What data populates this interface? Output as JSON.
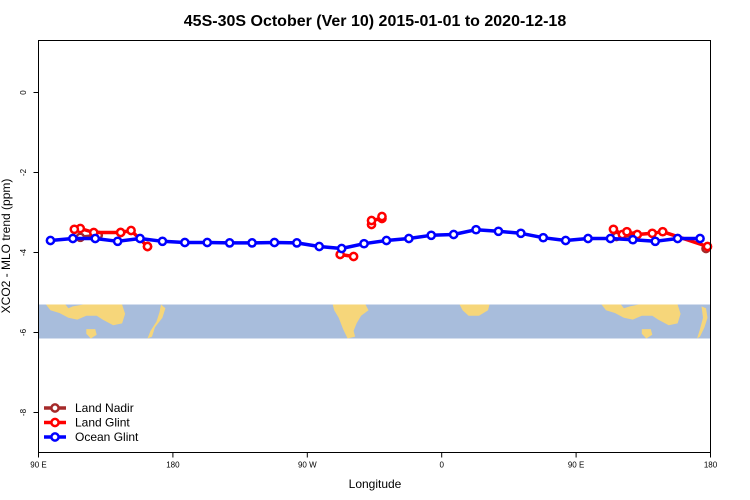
{
  "chart_data": {
    "type": "line",
    "title": "45S-30S October (Ver 10)   2015-01-01 to 2020-12-18",
    "xlabel": "Longitude",
    "ylabel": "XCO2 - MLO trend (ppm)",
    "xlim": [
      90,
      540
    ],
    "ylim": [
      -9.0,
      1.3
    ],
    "x_ticks": [
      {
        "value": 90,
        "label": "90 E"
      },
      {
        "value": 180,
        "label": "180"
      },
      {
        "value": 270,
        "label": "90 W"
      },
      {
        "value": 360,
        "label": "0"
      },
      {
        "value": 450,
        "label": "90 E"
      },
      {
        "value": 540,
        "label": "180"
      }
    ],
    "y_ticks": [
      {
        "value": 0,
        "label": "0"
      },
      {
        "value": -2,
        "label": "-2"
      },
      {
        "value": -4,
        "label": "-4"
      },
      {
        "value": -6,
        "label": "-6"
      },
      {
        "value": -8,
        "label": "-8"
      }
    ],
    "legend_position": "bottom-left",
    "grid": false,
    "background_map": {
      "lat_range": "45S-30S",
      "y_range": [
        -6.15,
        -5.3
      ],
      "ocean_color": "#a8bddc",
      "land_color": "#f6d67a"
    },
    "series": [
      {
        "name": "Land Nadir",
        "color": "#a52a2a",
        "segments": [
          [
            [
              118,
              -3.62
            ],
            [
              130,
              -3.57
            ]
          ],
          [
            [
              477,
              -3.6
            ],
            [
              490,
              -3.57
            ]
          ],
          [
            [
              537,
              -3.9
            ]
          ]
        ]
      },
      {
        "name": "Land Glint",
        "color": "#ff0000",
        "segments": [
          [
            [
              118,
              -3.4
            ],
            [
              127,
              -3.5
            ],
            [
              145,
              -3.5
            ],
            [
              152,
              -3.45
            ],
            [
              163,
              -3.85
            ]
          ],
          [
            [
              114,
              -3.42
            ]
          ],
          [
            [
              145,
              -3.5
            ]
          ],
          [
            [
              163,
              -3.85
            ]
          ],
          [
            [
              292,
              -4.05
            ],
            [
              301,
              -4.1
            ]
          ],
          [
            [
              313,
              -3.3
            ],
            [
              313,
              -3.2
            ],
            [
              320,
              -3.15
            ],
            [
              320,
              -3.1
            ]
          ],
          [
            [
              475,
              -3.42
            ],
            [
              481,
              -3.55
            ],
            [
              484,
              -3.48
            ],
            [
              491,
              -3.55
            ],
            [
              501,
              -3.52
            ],
            [
              508,
              -3.48
            ],
            [
              538,
              -3.85
            ]
          ]
        ]
      },
      {
        "name": "Ocean Glint",
        "color": "#0000ff",
        "values": [
          [
            98,
            -3.7
          ],
          [
            113,
            -3.65
          ],
          [
            128,
            -3.65
          ],
          [
            143,
            -3.72
          ],
          [
            158,
            -3.65
          ],
          [
            173,
            -3.72
          ],
          [
            188,
            -3.75
          ],
          [
            203,
            -3.75
          ],
          [
            218,
            -3.76
          ],
          [
            233,
            -3.76
          ],
          [
            248,
            -3.75
          ],
          [
            263,
            -3.76
          ],
          [
            278,
            -3.85
          ],
          [
            293,
            -3.9
          ],
          [
            308,
            -3.78
          ],
          [
            323,
            -3.7
          ],
          [
            338,
            -3.65
          ],
          [
            353,
            -3.57
          ],
          [
            368,
            -3.55
          ],
          [
            383,
            -3.43
          ],
          [
            398,
            -3.47
          ],
          [
            413,
            -3.52
          ],
          [
            428,
            -3.63
          ],
          [
            443,
            -3.7
          ],
          [
            458,
            -3.65
          ],
          [
            473,
            -3.65
          ],
          [
            488,
            -3.68
          ],
          [
            503,
            -3.72
          ],
          [
            518,
            -3.65
          ],
          [
            533,
            -3.65
          ]
        ]
      }
    ]
  }
}
